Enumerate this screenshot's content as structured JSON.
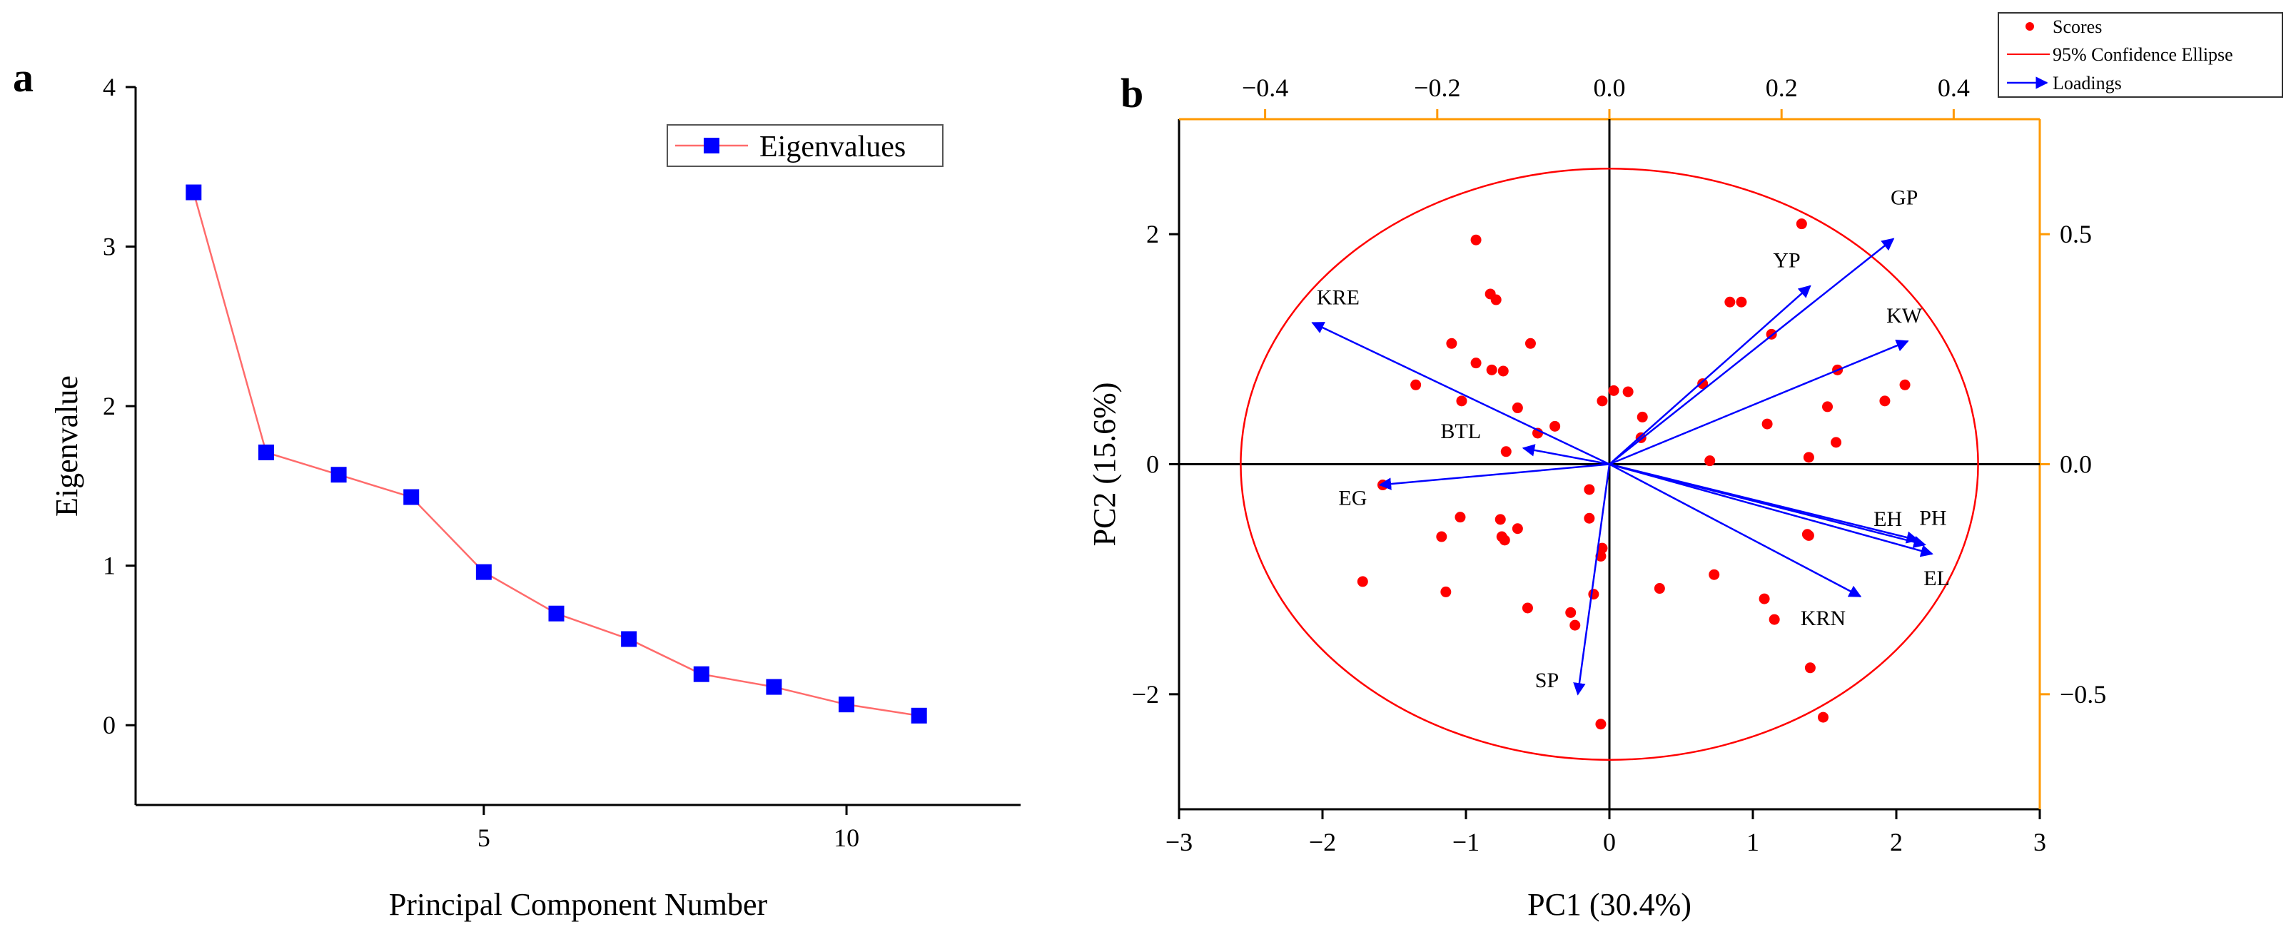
{
  "chart_data": [
    {
      "panel": "a",
      "type": "line",
      "xlabel": "Principal Component Number",
      "ylabel": "Eigenvalue",
      "xlim": [
        0.2,
        12.4
      ],
      "ylim": [
        -0.5,
        4
      ],
      "xticks": [
        5,
        10
      ],
      "yticks": [
        0,
        1,
        2,
        3,
        4
      ],
      "legend": {
        "position": "top-right",
        "entries": [
          "Eigenvalues"
        ]
      },
      "series": [
        {
          "name": "Eigenvalues",
          "color": "#ff6b6b",
          "marker_color": "#0000ff",
          "x": [
            1,
            2,
            3,
            4,
            5,
            6,
            7,
            8,
            9,
            10,
            11
          ],
          "values": [
            3.34,
            1.71,
            1.57,
            1.43,
            0.96,
            0.7,
            0.54,
            0.32,
            0.24,
            0.13,
            0.06
          ]
        }
      ]
    },
    {
      "panel": "b",
      "type": "scatter",
      "subtype": "biplot",
      "xlabel": "PC1 (30.4%)",
      "ylabel": "PC2 (15.6%)",
      "xlim": [
        -3,
        3
      ],
      "ylim": [
        -3,
        3
      ],
      "xticks": [
        -3,
        -2,
        -1,
        0,
        1,
        2,
        3
      ],
      "yticks": [
        -2,
        0,
        2
      ],
      "top_axis": {
        "range": [
          -0.5,
          0.5
        ],
        "ticks": [
          -0.4,
          -0.2,
          0.0,
          0.2,
          0.4
        ],
        "color": "#ff9900"
      },
      "right_axis": {
        "range": [
          -0.75,
          0.75
        ],
        "ticks": [
          -0.5,
          0.0,
          0.5
        ],
        "color": "#ff9900"
      },
      "legend": {
        "position": "top-right",
        "entries": [
          "Scores",
          "95% Confidence Ellipse",
          "Loadings"
        ]
      },
      "ellipse": {
        "rx": 2.57,
        "ry": 2.57,
        "color": "#ff0000"
      },
      "scores_color": "#ff0000",
      "loadings_color": "#0000ff",
      "scores": [
        [
          -0.93,
          1.95
        ],
        [
          -0.83,
          1.48
        ],
        [
          -0.79,
          1.43
        ],
        [
          -1.1,
          1.05
        ],
        [
          -0.55,
          1.05
        ],
        [
          -0.93,
          0.88
        ],
        [
          -0.82,
          0.82
        ],
        [
          -0.74,
          0.81
        ],
        [
          -1.35,
          0.69
        ],
        [
          -1.03,
          0.55
        ],
        [
          -0.64,
          0.49
        ],
        [
          -0.38,
          0.33
        ],
        [
          -0.5,
          0.27
        ],
        [
          -0.72,
          0.11
        ],
        [
          -1.58,
          -0.18
        ],
        [
          -1.04,
          -0.46
        ],
        [
          -0.76,
          -0.48
        ],
        [
          -0.64,
          -0.56
        ],
        [
          -0.75,
          -0.63
        ],
        [
          -0.73,
          -0.66
        ],
        [
          -1.17,
          -0.63
        ],
        [
          -1.72,
          -1.02
        ],
        [
          -1.14,
          -1.11
        ],
        [
          -0.57,
          -1.25
        ],
        [
          -0.27,
          -1.29
        ],
        [
          -0.24,
          -1.4
        ],
        [
          -0.14,
          -0.22
        ],
        [
          -0.14,
          -0.47
        ],
        [
          -0.11,
          -1.13
        ],
        [
          -0.05,
          -0.73
        ],
        [
          -0.06,
          -0.8
        ],
        [
          -0.06,
          -2.26
        ],
        [
          -0.05,
          0.55
        ],
        [
          0.03,
          0.64
        ],
        [
          0.13,
          0.63
        ],
        [
          0.23,
          0.41
        ],
        [
          0.22,
          0.23
        ],
        [
          0.7,
          0.03
        ],
        [
          0.35,
          -1.08
        ],
        [
          0.73,
          -0.96
        ],
        [
          0.65,
          0.7
        ],
        [
          0.84,
          1.41
        ],
        [
          0.92,
          1.41
        ],
        [
          1.1,
          0.35
        ],
        [
          1.13,
          1.13
        ],
        [
          1.08,
          -1.17
        ],
        [
          1.15,
          -1.35
        ],
        [
          1.34,
          2.09
        ],
        [
          1.39,
          0.06
        ],
        [
          1.39,
          -0.62
        ],
        [
          1.4,
          -1.77
        ],
        [
          1.49,
          -2.2
        ],
        [
          1.52,
          0.5
        ],
        [
          1.58,
          0.19
        ],
        [
          1.59,
          0.82
        ],
        [
          1.92,
          0.55
        ],
        [
          2.06,
          0.69
        ],
        [
          1.38,
          -0.61
        ]
      ],
      "loadings": [
        {
          "name": "GP",
          "x": 1.98,
          "y": 1.96
        },
        {
          "name": "YP",
          "x": 1.4,
          "y": 1.55
        },
        {
          "name": "KW",
          "x": 2.08,
          "y": 1.07
        },
        {
          "name": "KRE",
          "x": -2.07,
          "y": 1.23
        },
        {
          "name": "BTL",
          "x": -0.6,
          "y": 0.14
        },
        {
          "name": "EG",
          "x": -1.6,
          "y": -0.18
        },
        {
          "name": "PH",
          "x": 2.2,
          "y": -0.7
        },
        {
          "name": "EH",
          "x": 2.15,
          "y": -0.66
        },
        {
          "name": "EL",
          "x": 2.25,
          "y": -0.78
        },
        {
          "name": "KRN",
          "x": 1.75,
          "y": -1.15
        },
        {
          "name": "SP",
          "x": -0.22,
          "y": -2.0
        }
      ]
    }
  ],
  "panel_labels": {
    "a": "a",
    "b": "b"
  }
}
